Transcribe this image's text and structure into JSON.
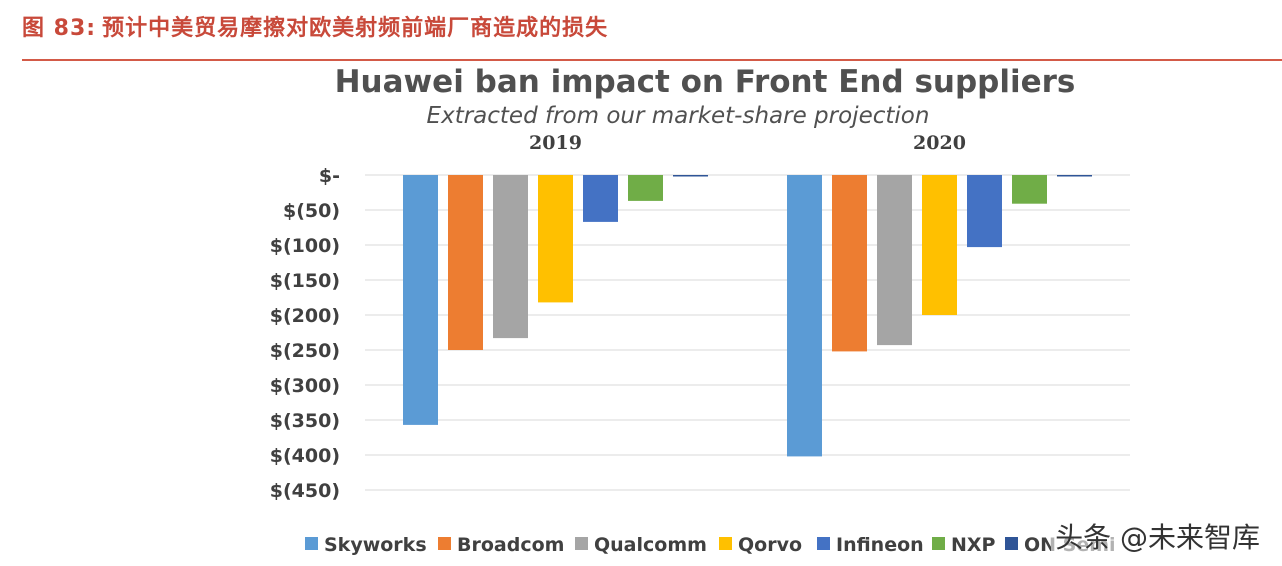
{
  "header": {
    "figure_number": "图 83:",
    "caption": "预计中美贸易摩擦对欧美射频前端厂商造成的损失"
  },
  "watermark": "头条 @未来智库",
  "chart_data": {
    "type": "bar",
    "title": "Huawei ban impact on Front End suppliers",
    "subtitle": "Extracted from our market-share projection",
    "categories": [
      "2019",
      "2020"
    ],
    "series": [
      {
        "name": "Skyworks",
        "color": "#5b9bd5",
        "values": [
          -357,
          -402
        ]
      },
      {
        "name": "Broadcom",
        "color": "#ed7d31",
        "values": [
          -250,
          -252
        ]
      },
      {
        "name": "Qualcomm",
        "color": "#a5a5a5",
        "values": [
          -233,
          -243
        ]
      },
      {
        "name": "Qorvo",
        "color": "#ffc000",
        "values": [
          -182,
          -200
        ]
      },
      {
        "name": "Infineon",
        "color": "#4472c4",
        "values": [
          -67,
          -103
        ]
      },
      {
        "name": "NXP",
        "color": "#70ad47",
        "values": [
          -37,
          -41
        ]
      },
      {
        "name": "ON Semi",
        "color": "#2f5597",
        "values": [
          -2,
          -2
        ]
      }
    ],
    "ylim": [
      -450,
      0
    ],
    "yticks": [
      0,
      -50,
      -100,
      -150,
      -200,
      -250,
      -300,
      -350,
      -400,
      -450
    ],
    "ytick_labels": [
      "$-",
      "$(50)",
      "$(100)",
      "$(150)",
      "$(200)",
      "$(250)",
      "$(300)",
      "$(350)",
      "$(400)",
      "$(450)"
    ],
    "grid": true,
    "legend_position": "bottom"
  }
}
